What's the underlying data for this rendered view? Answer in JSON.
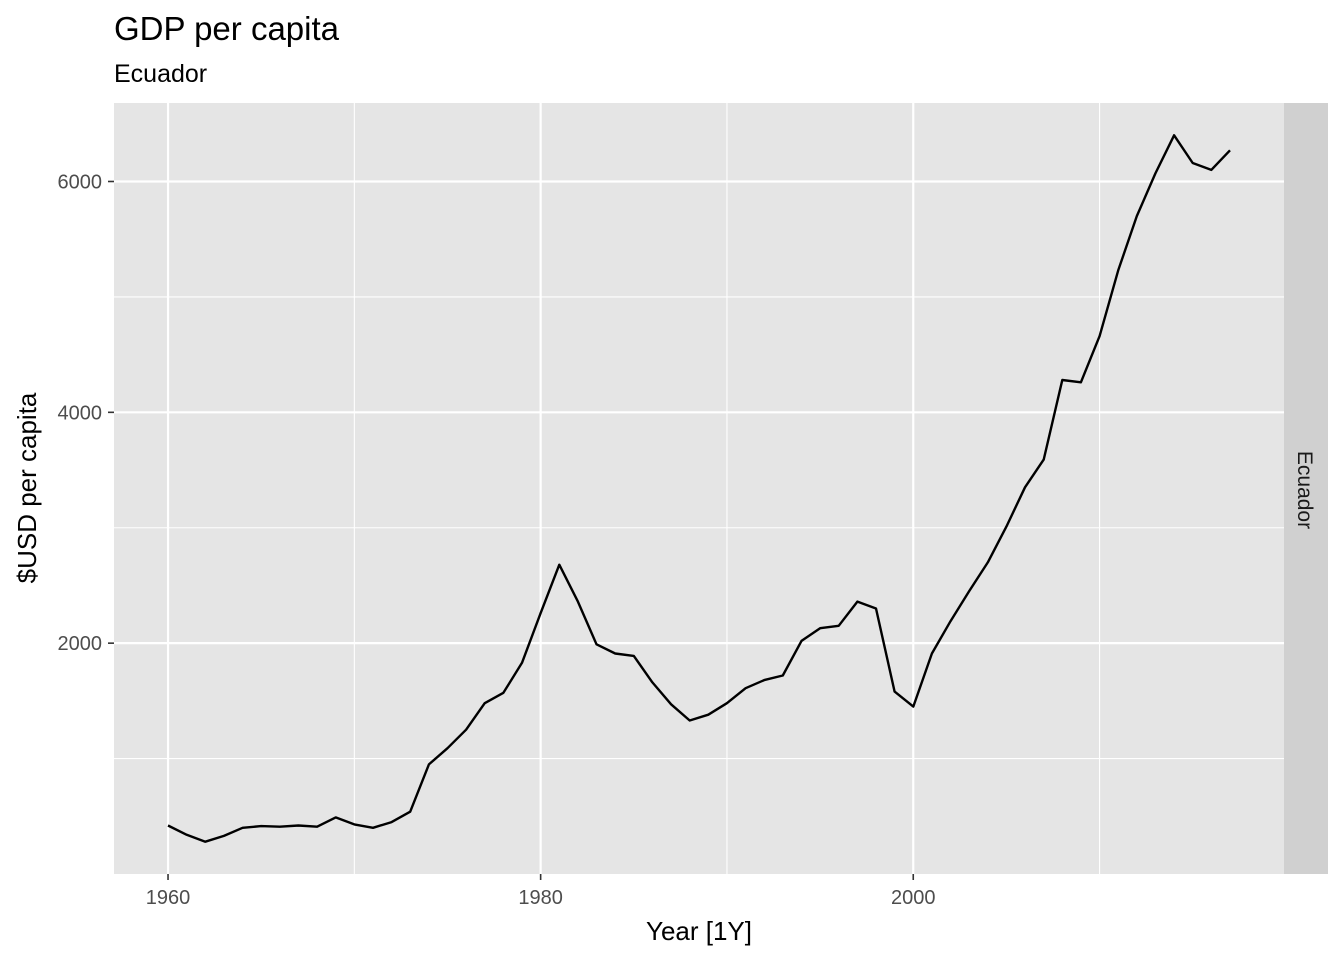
{
  "chart_data": {
    "type": "line",
    "title": "GDP per capita",
    "subtitle": "Ecuador",
    "xlabel": "Year [1Y]",
    "ylabel": "$USD per capita",
    "facet_label": "Ecuador",
    "xlim": [
      1957.1,
      2019.9
    ],
    "ylim": [
      0,
      6680
    ],
    "x_ticks": [
      1960,
      1980,
      2000
    ],
    "x_minor_ticks": [
      1970,
      1990,
      2010
    ],
    "y_ticks": [
      2000,
      4000,
      6000
    ],
    "y_minor_ticks": [
      1000,
      3000,
      5000
    ],
    "grid": true,
    "line_color": "#000000",
    "panel_color": "#e5e5e5",
    "strip_color": "#d0d0d0",
    "series": [
      {
        "x": [
          1960,
          1961,
          1962,
          1963,
          1964,
          1965,
          1966,
          1967,
          1968,
          1969,
          1970,
          1971,
          1972,
          1973,
          1974,
          1975,
          1976,
          1977,
          1978,
          1979,
          1980,
          1981,
          1982,
          1983,
          1984,
          1985,
          1986,
          1987,
          1988,
          1989,
          1990,
          1991,
          1992,
          1993,
          1994,
          1995,
          1996,
          1997,
          1998,
          1999,
          2000,
          2001,
          2002,
          2003,
          2004,
          2005,
          2006,
          2007,
          2008,
          2009,
          2010,
          2011,
          2012,
          2013,
          2014,
          2015,
          2016,
          2017
        ],
        "y": [
          420,
          340,
          280,
          330,
          400,
          415,
          410,
          420,
          410,
          490,
          430,
          400,
          450,
          540,
          950,
          1090,
          1250,
          1480,
          1570,
          1830,
          2260,
          2680,
          2360,
          1990,
          1910,
          1890,
          1660,
          1470,
          1330,
          1380,
          1480,
          1610,
          1680,
          1720,
          2020,
          2130,
          2150,
          2360,
          2300,
          1580,
          1450,
          1910,
          2190,
          2450,
          2700,
          3010,
          3350,
          3590,
          4280,
          4260,
          4660,
          5230,
          5700,
          6070,
          6400,
          6160,
          6100,
          6270
        ]
      }
    ]
  }
}
